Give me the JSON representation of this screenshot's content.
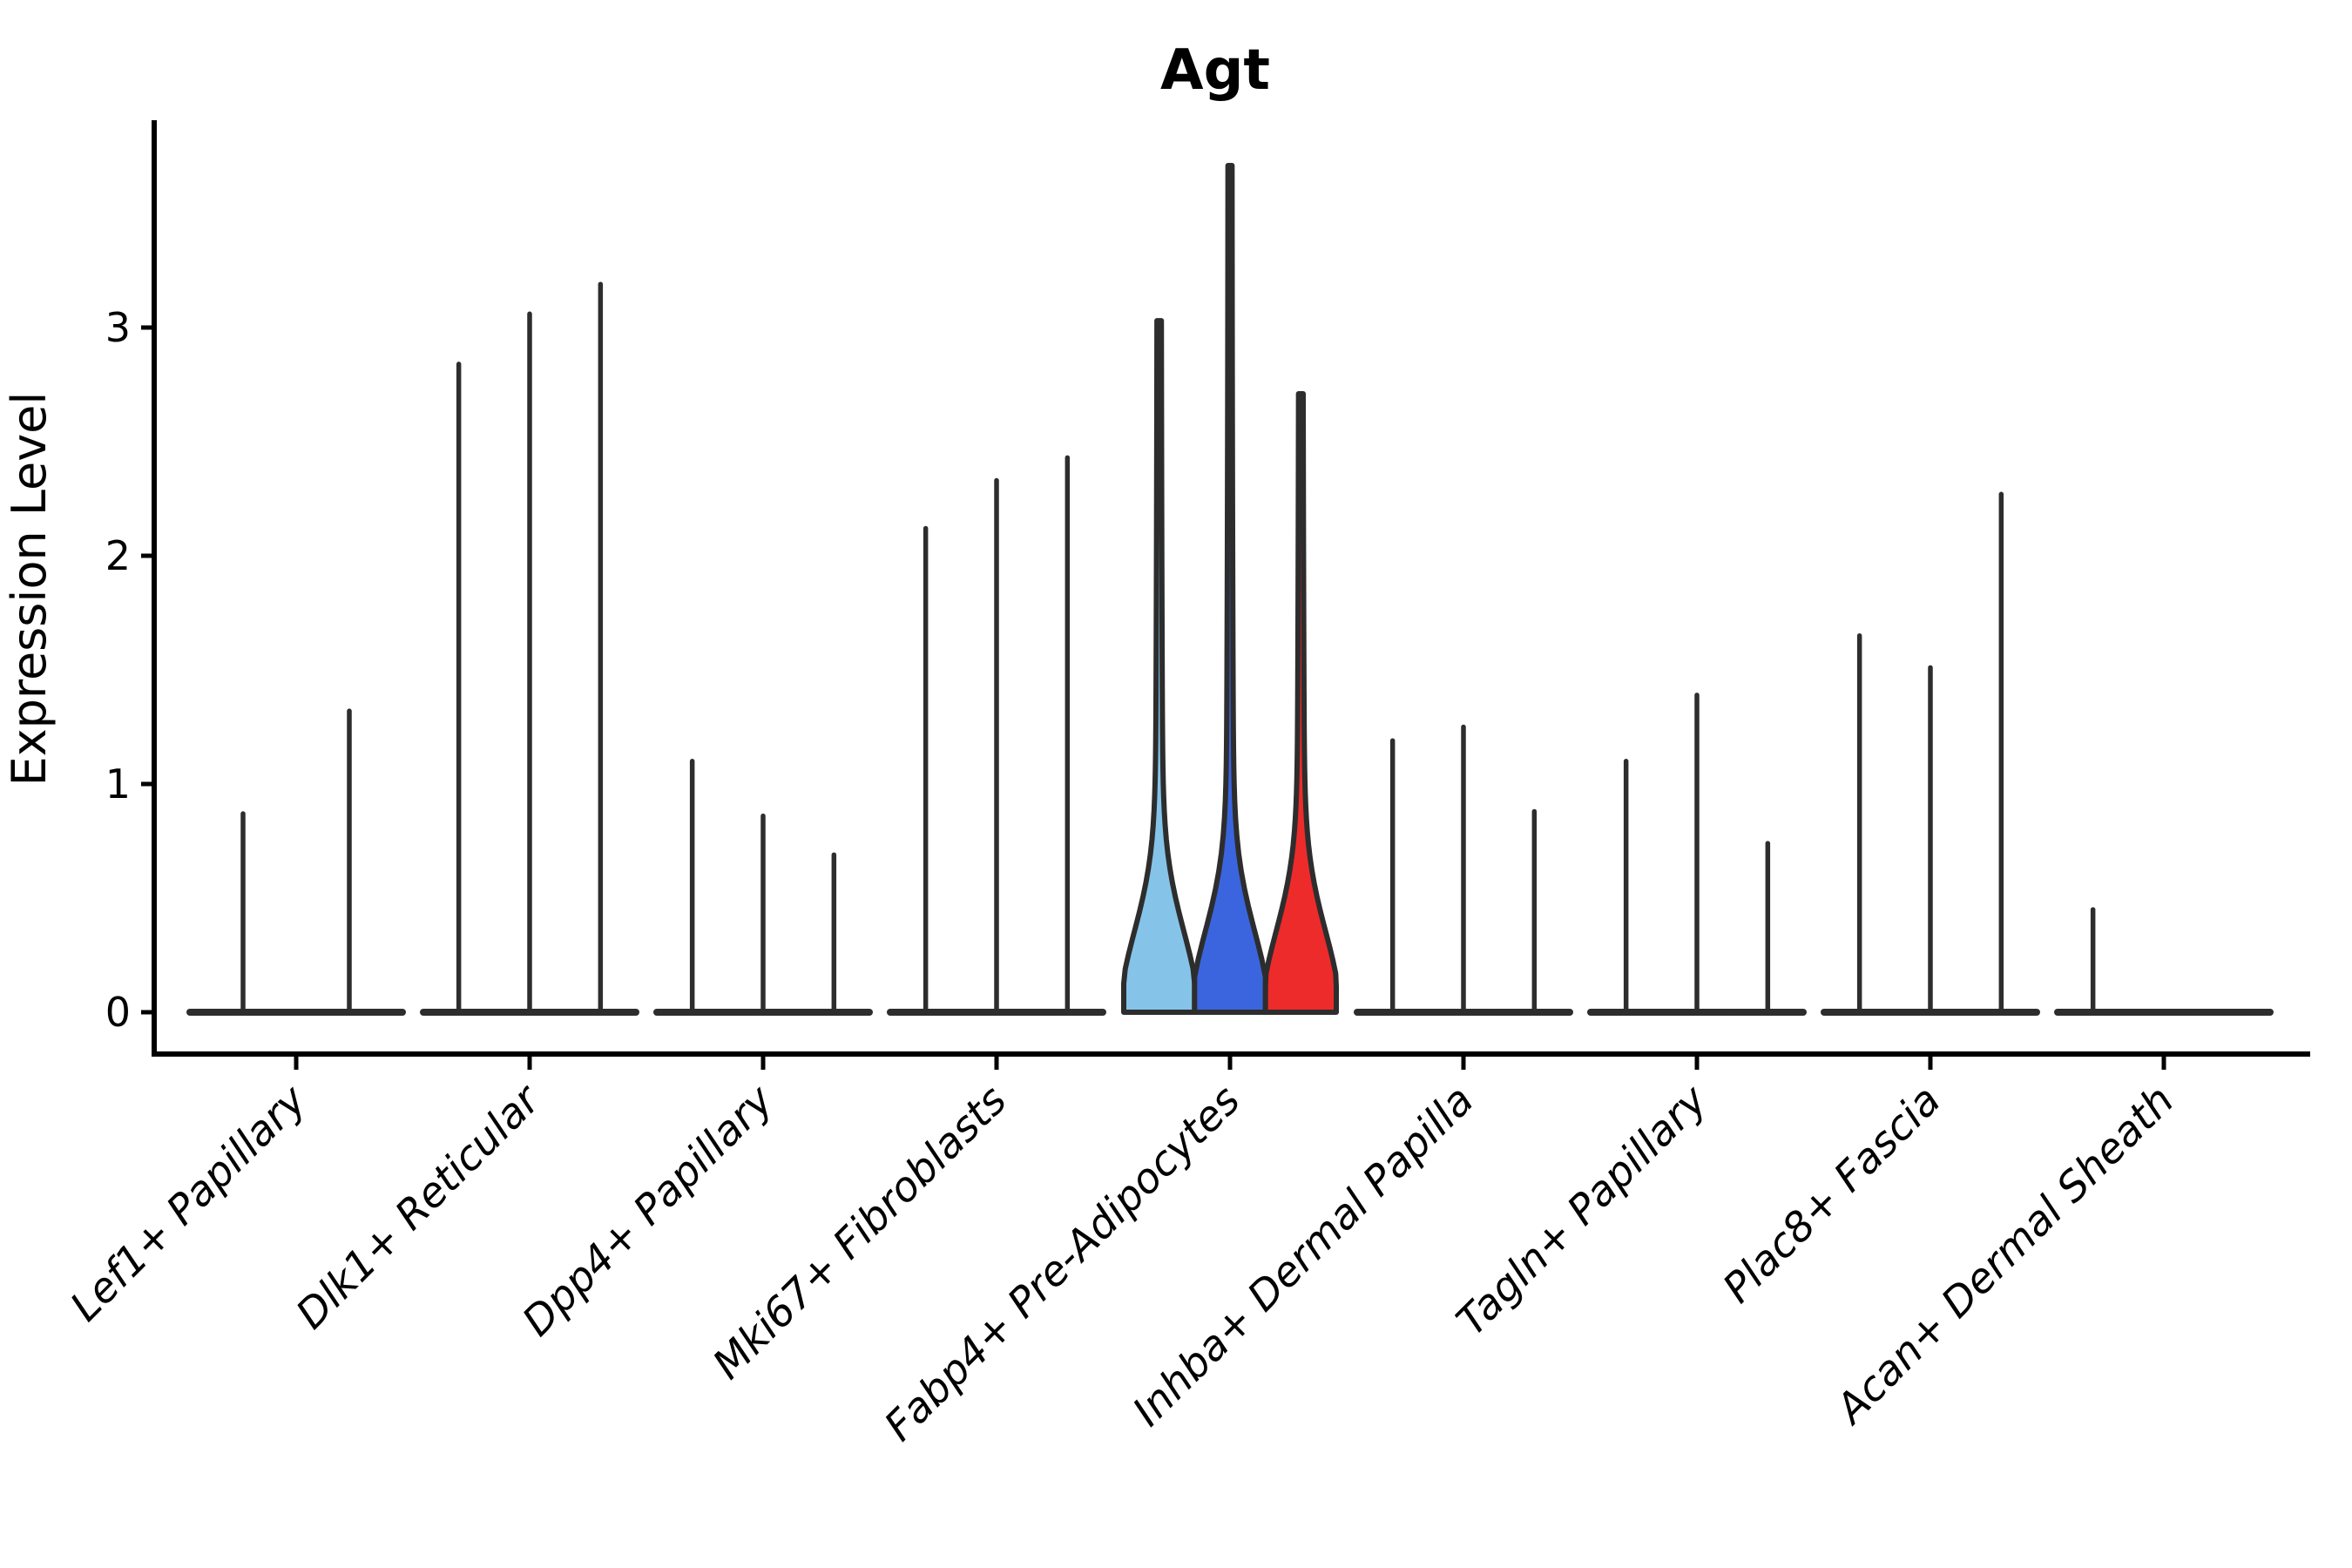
{
  "title": "Agt",
  "colors": {
    "axis": "#000000",
    "violin_stroke": "#2d2d2d",
    "background": "#ffffff"
  },
  "chart_data": {
    "type": "violin",
    "title": "Agt",
    "xlabel": "",
    "ylabel": "Expression Level",
    "ylim": [
      0,
      3.9
    ],
    "yticks": [
      0,
      1,
      2,
      3
    ],
    "ytick_labels": [
      "0",
      "1",
      "2",
      "3"
    ],
    "legend": "none",
    "grid": false,
    "categories": [
      "Lef1+ Papillary",
      "Dlk1+ Reticular",
      "Dpp4+ Papillary",
      "Mki67+ Fibroblasts",
      "Fabp4+ Pre-Adipocytes",
      "Inhba+ Dermal Papilla",
      "Tagln+ Papillary",
      "Plac8+ Fascia",
      "Acan+ Dermal Sheath"
    ],
    "groups": [
      {
        "category": "Lef1+ Papillary",
        "violins": [
          {
            "peak": 0.87
          },
          {
            "peak": 1.32
          }
        ]
      },
      {
        "category": "Dlk1+ Reticular",
        "violins": [
          {
            "peak": 2.84
          },
          {
            "peak": 3.06
          },
          {
            "peak": 3.19
          }
        ]
      },
      {
        "category": "Dpp4+ Papillary",
        "violins": [
          {
            "peak": 1.1
          },
          {
            "peak": 0.86
          },
          {
            "peak": 0.69
          }
        ]
      },
      {
        "category": "Mki67+ Fibroblasts",
        "violins": [
          {
            "peak": 2.12
          },
          {
            "peak": 2.33
          },
          {
            "peak": 2.43
          }
        ]
      },
      {
        "category": "Fabp4+ Pre-Adipocytes",
        "violins": [
          {
            "peak": 3.03,
            "fill": "#85C4E8"
          },
          {
            "peak": 3.71,
            "fill": "#3B65DE"
          },
          {
            "peak": 2.71,
            "fill": "#EE2B2B"
          }
        ]
      },
      {
        "category": "Inhba+ Dermal Papilla",
        "violins": [
          {
            "peak": 1.19
          },
          {
            "peak": 1.25
          },
          {
            "peak": 0.88
          }
        ]
      },
      {
        "category": "Tagln+ Papillary",
        "violins": [
          {
            "peak": 1.1
          },
          {
            "peak": 1.39
          },
          {
            "peak": 0.74
          }
        ]
      },
      {
        "category": "Plac8+ Fascia",
        "violins": [
          {
            "peak": 1.65
          },
          {
            "peak": 1.51
          },
          {
            "peak": 2.27
          }
        ]
      },
      {
        "category": "Acan+ Dermal Sheath",
        "violins": [
          {
            "peak": 0.45
          },
          {
            "peak": 0.0
          },
          {
            "peak": 0.0
          }
        ]
      }
    ]
  }
}
